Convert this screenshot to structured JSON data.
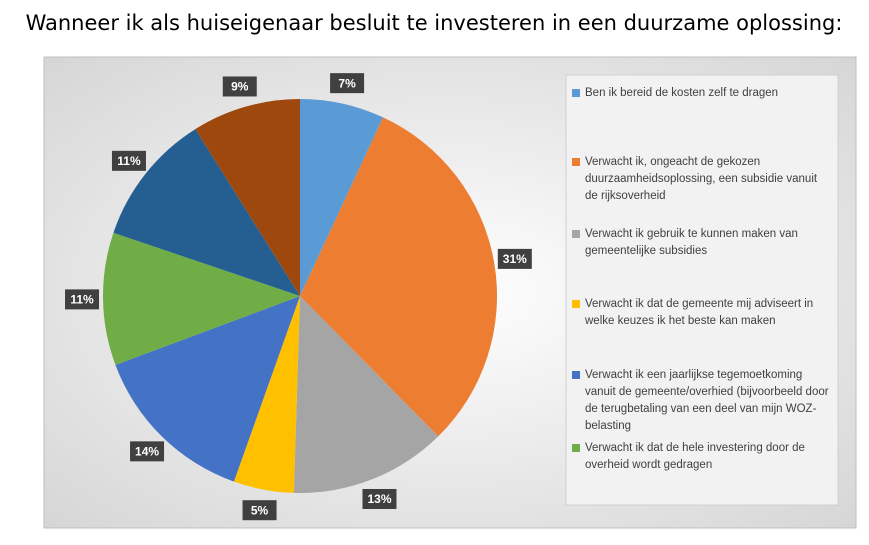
{
  "chart_data": {
    "type": "pie",
    "title": "Wanneer ik als huiseigenaar besluit te investeren in een duurzame oplossing:",
    "categories": [
      "Ben ik bereid de kosten zelf te dragen",
      "Verwacht ik, ongeacht de gekozen duurzaamheidsoplossing, een subsidie vanuit de rijksoverheid",
      "Verwacht ik gebruik te kunnen maken van gemeentelijke subsidies",
      "Verwacht ik dat de gemeente mij adviseert in welke keuzes ik het beste kan maken",
      "Verwacht ik een jaarlijkse tegemoetkoming vanuit de gemeente/overhied (bijvoorbeeld door de terugbetaling van een deel van mijn WOZ-belasting",
      "Verwacht ik dat de hele investering door de overheid wordt gedragen",
      null,
      null
    ],
    "values": [
      7,
      31,
      13,
      5,
      14,
      11,
      11,
      9
    ],
    "value_labels": [
      "7%",
      "31%",
      "13%",
      "5%",
      "14%",
      "11%",
      "11%",
      "9%"
    ],
    "colors": [
      "#5b9bd5",
      "#ed7d31",
      "#a5a5a5",
      "#ffc000",
      "#4472c4",
      "#70ad47",
      "#255e91",
      "#9e480e"
    ]
  }
}
